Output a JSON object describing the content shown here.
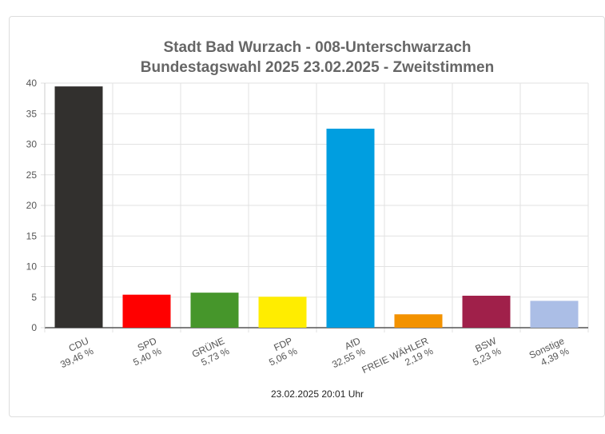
{
  "chart_data": {
    "type": "bar",
    "title": [
      "Stadt Bad Wurzach - 008-Unterschwarzach",
      "Bundestagswahl 2025 23.02.2025  - Zweitstimmen"
    ],
    "categories": [
      "CDU",
      "SPD",
      "GRÜNE",
      "FDP",
      "AfD",
      "FREIE WÄHLER",
      "BSW",
      "Sonstige"
    ],
    "values": [
      39.46,
      5.4,
      5.73,
      5.06,
      32.55,
      2.19,
      5.23,
      4.39
    ],
    "value_labels": [
      "39,46 %",
      "5,40 %",
      "5,73 %",
      "5,06 %",
      "32,55 %",
      "2,19 %",
      "5,23 %",
      "4,39 %"
    ],
    "colors": [
      "#32302e",
      "#ff0000",
      "#46962b",
      "#ffed00",
      "#009ee0",
      "#f39200",
      "#a0204a",
      "#abbee6"
    ],
    "ylim": [
      0,
      40
    ],
    "yticks": [
      0,
      5,
      10,
      15,
      20,
      25,
      30,
      35,
      40
    ],
    "grid": true,
    "xlabel": "",
    "ylabel": "",
    "footer": "23.02.2025 20:01 Uhr"
  }
}
